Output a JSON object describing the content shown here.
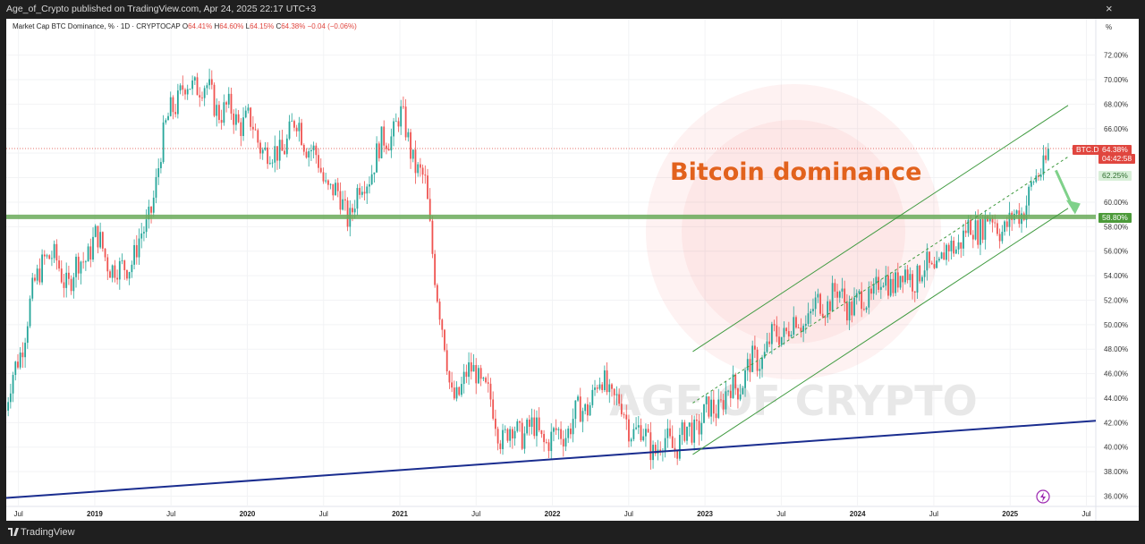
{
  "header": {
    "publisher_line": "Age_of_Crypto published on TradingView.com, Apr 24, 2025 22:17 UTC+3",
    "close_symbol": "×"
  },
  "legend": {
    "symbol": "Market Cap BTC Dominance, % · 1D · CRYPTOCAP",
    "open_label": "O",
    "open": "64.41%",
    "high_label": "H",
    "high": "64.60%",
    "low_label": "L",
    "low": "64.15%",
    "close_label": "C",
    "close": "64.38%",
    "change": "−0.04 (−0.06%)"
  },
  "watermark": {
    "text": "AGE OF CRYPTO"
  },
  "annotation": {
    "title": "Bitcoin dominance",
    "color": "#e2621d"
  },
  "price_labels": {
    "symbol": "BTC.D",
    "last": "64.38%",
    "countdown": "04:42:58",
    "target": "62.25%",
    "support": "58.80%"
  },
  "axis": {
    "unit": "%",
    "y_ticks": [
      "72.00%",
      "70.00%",
      "68.00%",
      "66.00%",
      "64.00%",
      "62.00%",
      "60.00%",
      "58.00%",
      "56.00%",
      "54.00%",
      "52.00%",
      "50.00%",
      "48.00%",
      "46.00%",
      "44.00%",
      "42.00%",
      "40.00%",
      "38.00%",
      "36.00%"
    ],
    "x_ticks": [
      "Jul",
      "2019",
      "Jul",
      "2020",
      "Jul",
      "2021",
      "Jul",
      "2022",
      "Jul",
      "2023",
      "Jul",
      "2024",
      "Jul",
      "2025",
      "Jul"
    ]
  },
  "footer": {
    "brand": "TradingView"
  },
  "colors": {
    "up": "#26a69a",
    "down": "#ef5350",
    "channel": "#3f9a3f",
    "support": "#6aab5a",
    "trendline": "#1a2d8f",
    "annotation": "#e2621d",
    "last_price": "#e0463f"
  },
  "chart_data": {
    "type": "candlestick",
    "title": "Market Cap BTC Dominance, % · 1D · CRYPTOCAP",
    "ylabel": "%",
    "ylim": [
      35.5,
      73.5
    ],
    "x_range": [
      "2018-06",
      "2025-08"
    ],
    "grid": true,
    "series": [
      {
        "name": "BTC.D",
        "x": [
          "2018-06",
          "2018-07",
          "2018-09",
          "2018-11",
          "2019-01",
          "2019-03",
          "2019-05",
          "2019-07",
          "2019-09",
          "2019-11",
          "2020-01",
          "2020-03",
          "2020-05",
          "2020-07",
          "2020-09",
          "2020-11",
          "2021-01",
          "2021-03",
          "2021-05",
          "2021-07",
          "2021-09",
          "2021-11",
          "2022-01",
          "2022-03",
          "2022-05",
          "2022-07",
          "2022-09",
          "2022-11",
          "2023-01",
          "2023-03",
          "2023-05",
          "2023-07",
          "2023-09",
          "2023-11",
          "2024-01",
          "2024-03",
          "2024-05",
          "2024-07",
          "2024-09",
          "2024-11",
          "2025-01",
          "2025-03",
          "2025-04"
        ],
        "values": [
          43.0,
          47.5,
          56.0,
          53.5,
          57.0,
          54.0,
          57.5,
          68.0,
          70.0,
          67.5,
          66.5,
          63.5,
          66.5,
          62.0,
          59.0,
          63.5,
          67.0,
          61.0,
          44.0,
          46.5,
          41.0,
          41.5,
          40.5,
          42.5,
          45.5,
          42.0,
          40.0,
          40.5,
          42.5,
          44.5,
          47.0,
          49.5,
          50.5,
          52.5,
          51.5,
          53.5,
          54.0,
          54.5,
          57.0,
          58.5,
          58.0,
          61.5,
          64.38
        ]
      }
    ],
    "annotations": {
      "support_level": 58.8,
      "target_level": 62.25,
      "last_price": 64.38
    }
  }
}
